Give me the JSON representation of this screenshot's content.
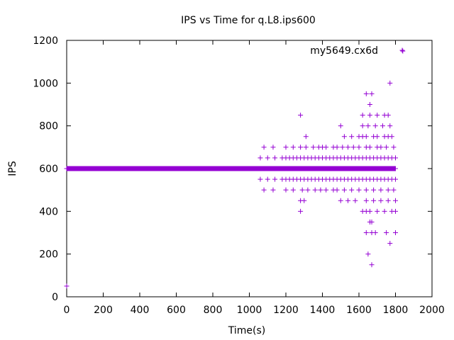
{
  "chart_data": {
    "type": "scatter",
    "title": "IPS vs Time for q.L8.ips600",
    "xlabel": "Time(s)",
    "ylabel": "IPS",
    "xlim": [
      0,
      2000
    ],
    "ylim": [
      0,
      1200
    ],
    "x_ticks": [
      0,
      200,
      400,
      600,
      800,
      1000,
      1200,
      1400,
      1600,
      1800,
      2000
    ],
    "y_ticks": [
      0,
      200,
      400,
      600,
      800,
      1000,
      1200
    ],
    "grid": false,
    "legend_position": "top-right",
    "series": [
      {
        "name": "my5649.cx6d",
        "color": "#9400d3",
        "marker": "plus",
        "points": [
          [
            0,
            50
          ],
          [
            0,
            600
          ],
          [
            20,
            600
          ],
          [
            40,
            600
          ],
          [
            60,
            600
          ],
          [
            80,
            600
          ],
          [
            100,
            600
          ],
          [
            120,
            600
          ],
          [
            140,
            600
          ],
          [
            160,
            600
          ],
          [
            180,
            600
          ],
          [
            200,
            600
          ],
          [
            220,
            600
          ],
          [
            240,
            600
          ],
          [
            260,
            600
          ],
          [
            280,
            600
          ],
          [
            300,
            600
          ],
          [
            320,
            600
          ],
          [
            340,
            600
          ],
          [
            360,
            600
          ],
          [
            380,
            600
          ],
          [
            400,
            600
          ],
          [
            420,
            600
          ],
          [
            440,
            600
          ],
          [
            460,
            600
          ],
          [
            480,
            600
          ],
          [
            500,
            600
          ],
          [
            520,
            600
          ],
          [
            540,
            600
          ],
          [
            560,
            600
          ],
          [
            580,
            600
          ],
          [
            600,
            600
          ],
          [
            620,
            600
          ],
          [
            640,
            600
          ],
          [
            660,
            600
          ],
          [
            680,
            600
          ],
          [
            700,
            600
          ],
          [
            720,
            600
          ],
          [
            740,
            600
          ],
          [
            760,
            600
          ],
          [
            780,
            600
          ],
          [
            800,
            600
          ],
          [
            820,
            600
          ],
          [
            840,
            600
          ],
          [
            860,
            600
          ],
          [
            880,
            600
          ],
          [
            900,
            600
          ],
          [
            920,
            600
          ],
          [
            940,
            600
          ],
          [
            960,
            600
          ],
          [
            980,
            600
          ],
          [
            1000,
            600
          ],
          [
            1020,
            600
          ],
          [
            1040,
            600
          ],
          [
            1060,
            600
          ],
          [
            1080,
            600
          ],
          [
            1100,
            600
          ],
          [
            1120,
            600
          ],
          [
            1140,
            600
          ],
          [
            1160,
            600
          ],
          [
            1180,
            600
          ],
          [
            1200,
            600
          ],
          [
            1220,
            600
          ],
          [
            1240,
            600
          ],
          [
            1260,
            600
          ],
          [
            1280,
            600
          ],
          [
            1300,
            600
          ],
          [
            1320,
            600
          ],
          [
            1340,
            600
          ],
          [
            1360,
            600
          ],
          [
            1380,
            600
          ],
          [
            1400,
            600
          ],
          [
            1420,
            600
          ],
          [
            1440,
            600
          ],
          [
            1460,
            600
          ],
          [
            1480,
            600
          ],
          [
            1500,
            600
          ],
          [
            1520,
            600
          ],
          [
            1540,
            600
          ],
          [
            1560,
            600
          ],
          [
            1580,
            600
          ],
          [
            1600,
            600
          ],
          [
            1620,
            600
          ],
          [
            1640,
            600
          ],
          [
            1660,
            600
          ],
          [
            1680,
            600
          ],
          [
            1700,
            600
          ],
          [
            1720,
            600
          ],
          [
            1740,
            600
          ],
          [
            1760,
            600
          ],
          [
            1780,
            600
          ],
          [
            1800,
            600
          ],
          [
            1060,
            650
          ],
          [
            1100,
            650
          ],
          [
            1140,
            650
          ],
          [
            1180,
            650
          ],
          [
            1200,
            650
          ],
          [
            1220,
            650
          ],
          [
            1240,
            650
          ],
          [
            1260,
            650
          ],
          [
            1280,
            650
          ],
          [
            1300,
            650
          ],
          [
            1320,
            650
          ],
          [
            1340,
            650
          ],
          [
            1360,
            650
          ],
          [
            1380,
            650
          ],
          [
            1400,
            650
          ],
          [
            1420,
            650
          ],
          [
            1440,
            650
          ],
          [
            1460,
            650
          ],
          [
            1480,
            650
          ],
          [
            1500,
            650
          ],
          [
            1520,
            650
          ],
          [
            1540,
            650
          ],
          [
            1560,
            650
          ],
          [
            1580,
            650
          ],
          [
            1600,
            650
          ],
          [
            1620,
            650
          ],
          [
            1640,
            650
          ],
          [
            1660,
            650
          ],
          [
            1680,
            650
          ],
          [
            1700,
            650
          ],
          [
            1720,
            650
          ],
          [
            1740,
            650
          ],
          [
            1760,
            650
          ],
          [
            1780,
            650
          ],
          [
            1800,
            650
          ],
          [
            1060,
            550
          ],
          [
            1100,
            550
          ],
          [
            1140,
            550
          ],
          [
            1180,
            550
          ],
          [
            1200,
            550
          ],
          [
            1220,
            550
          ],
          [
            1240,
            550
          ],
          [
            1260,
            550
          ],
          [
            1280,
            550
          ],
          [
            1300,
            550
          ],
          [
            1320,
            550
          ],
          [
            1340,
            550
          ],
          [
            1360,
            550
          ],
          [
            1380,
            550
          ],
          [
            1400,
            550
          ],
          [
            1420,
            550
          ],
          [
            1440,
            550
          ],
          [
            1460,
            550
          ],
          [
            1480,
            550
          ],
          [
            1500,
            550
          ],
          [
            1520,
            550
          ],
          [
            1540,
            550
          ],
          [
            1560,
            550
          ],
          [
            1580,
            550
          ],
          [
            1600,
            550
          ],
          [
            1620,
            550
          ],
          [
            1640,
            550
          ],
          [
            1660,
            550
          ],
          [
            1680,
            550
          ],
          [
            1700,
            550
          ],
          [
            1720,
            550
          ],
          [
            1740,
            550
          ],
          [
            1760,
            550
          ],
          [
            1780,
            550
          ],
          [
            1800,
            550
          ],
          [
            1080,
            700
          ],
          [
            1130,
            700
          ],
          [
            1200,
            700
          ],
          [
            1240,
            700
          ],
          [
            1280,
            700
          ],
          [
            1310,
            700
          ],
          [
            1350,
            700
          ],
          [
            1380,
            700
          ],
          [
            1400,
            700
          ],
          [
            1420,
            700
          ],
          [
            1460,
            700
          ],
          [
            1480,
            700
          ],
          [
            1510,
            700
          ],
          [
            1540,
            700
          ],
          [
            1570,
            700
          ],
          [
            1600,
            700
          ],
          [
            1640,
            700
          ],
          [
            1660,
            700
          ],
          [
            1700,
            700
          ],
          [
            1720,
            700
          ],
          [
            1750,
            700
          ],
          [
            1790,
            700
          ],
          [
            1080,
            500
          ],
          [
            1130,
            500
          ],
          [
            1200,
            500
          ],
          [
            1240,
            500
          ],
          [
            1290,
            500
          ],
          [
            1320,
            500
          ],
          [
            1360,
            500
          ],
          [
            1390,
            500
          ],
          [
            1420,
            500
          ],
          [
            1460,
            500
          ],
          [
            1480,
            500
          ],
          [
            1520,
            500
          ],
          [
            1560,
            500
          ],
          [
            1600,
            500
          ],
          [
            1640,
            500
          ],
          [
            1680,
            500
          ],
          [
            1720,
            500
          ],
          [
            1760,
            500
          ],
          [
            1790,
            500
          ],
          [
            1520,
            750
          ],
          [
            1560,
            750
          ],
          [
            1600,
            750
          ],
          [
            1620,
            750
          ],
          [
            1640,
            750
          ],
          [
            1680,
            750
          ],
          [
            1700,
            750
          ],
          [
            1740,
            750
          ],
          [
            1760,
            750
          ],
          [
            1780,
            750
          ],
          [
            1310,
            750
          ],
          [
            1280,
            850
          ],
          [
            1500,
            800
          ],
          [
            1620,
            800
          ],
          [
            1650,
            800
          ],
          [
            1690,
            800
          ],
          [
            1730,
            800
          ],
          [
            1770,
            800
          ],
          [
            1620,
            850
          ],
          [
            1660,
            850
          ],
          [
            1700,
            850
          ],
          [
            1740,
            850
          ],
          [
            1760,
            850
          ],
          [
            1660,
            900
          ],
          [
            1640,
            950
          ],
          [
            1670,
            950
          ],
          [
            1770,
            1000
          ],
          [
            1840,
            1150
          ],
          [
            1280,
            450
          ],
          [
            1300,
            450
          ],
          [
            1500,
            450
          ],
          [
            1540,
            450
          ],
          [
            1580,
            450
          ],
          [
            1640,
            450
          ],
          [
            1680,
            450
          ],
          [
            1720,
            450
          ],
          [
            1760,
            450
          ],
          [
            1800,
            450
          ],
          [
            1280,
            400
          ],
          [
            1620,
            400
          ],
          [
            1640,
            400
          ],
          [
            1660,
            400
          ],
          [
            1700,
            400
          ],
          [
            1740,
            400
          ],
          [
            1780,
            400
          ],
          [
            1800,
            400
          ],
          [
            1660,
            350
          ],
          [
            1670,
            350
          ],
          [
            1640,
            300
          ],
          [
            1670,
            300
          ],
          [
            1690,
            300
          ],
          [
            1750,
            300
          ],
          [
            1800,
            300
          ],
          [
            1770,
            250
          ],
          [
            1650,
            200
          ],
          [
            1670,
            150
          ]
        ]
      }
    ]
  }
}
